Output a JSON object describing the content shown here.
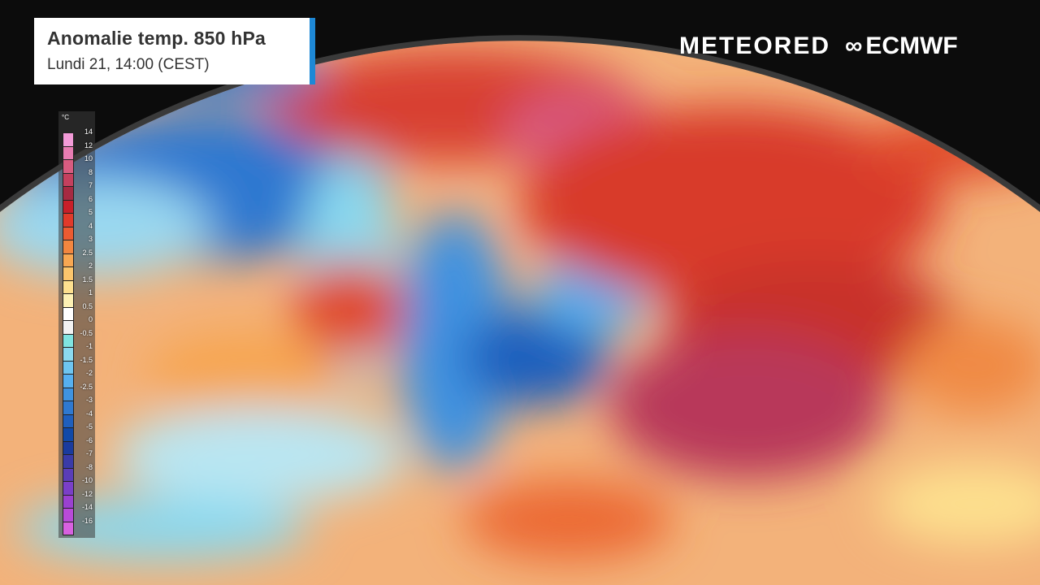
{
  "header": {
    "title": "Anomalie temp. 850 hPa",
    "subtitle": "Lundi 21, 14:00 (CEST)",
    "accent_color": "#1e88d6"
  },
  "logos": {
    "meteored": "METEORED",
    "ecmwf": "ECMWF"
  },
  "legend": {
    "unit": "°C",
    "labels": [
      "14",
      "12",
      "10",
      "8",
      "7",
      "6",
      "5",
      "4",
      "3",
      "2.5",
      "2",
      "1.5",
      "1",
      "0.5",
      "0",
      "-0.5",
      "-1",
      "-1.5",
      "-2",
      "-2.5",
      "-3",
      "-4",
      "-5",
      "-6",
      "-7",
      "-8",
      "-10",
      "-12",
      "-14",
      "-16"
    ],
    "colors": [
      "#f39bd8",
      "#e77cb2",
      "#d85c80",
      "#c4405e",
      "#a62a42",
      "#c81f29",
      "#e03a2a",
      "#ec5b31",
      "#f3863f",
      "#f8a752",
      "#fbc56c",
      "#fde08f",
      "#fdf1b4",
      "#ffffff",
      "#f2f2f2",
      "#80e4e0",
      "#8bd9ee",
      "#6ec5f0",
      "#56b0f0",
      "#3f93e0",
      "#2f79d0",
      "#1f5fbd",
      "#1049a8",
      "#1a3b9e",
      "#3a3ba8",
      "#5a3db8",
      "#7a3fc8",
      "#9a41d0",
      "#b84bd8",
      "#d861e0"
    ]
  }
}
